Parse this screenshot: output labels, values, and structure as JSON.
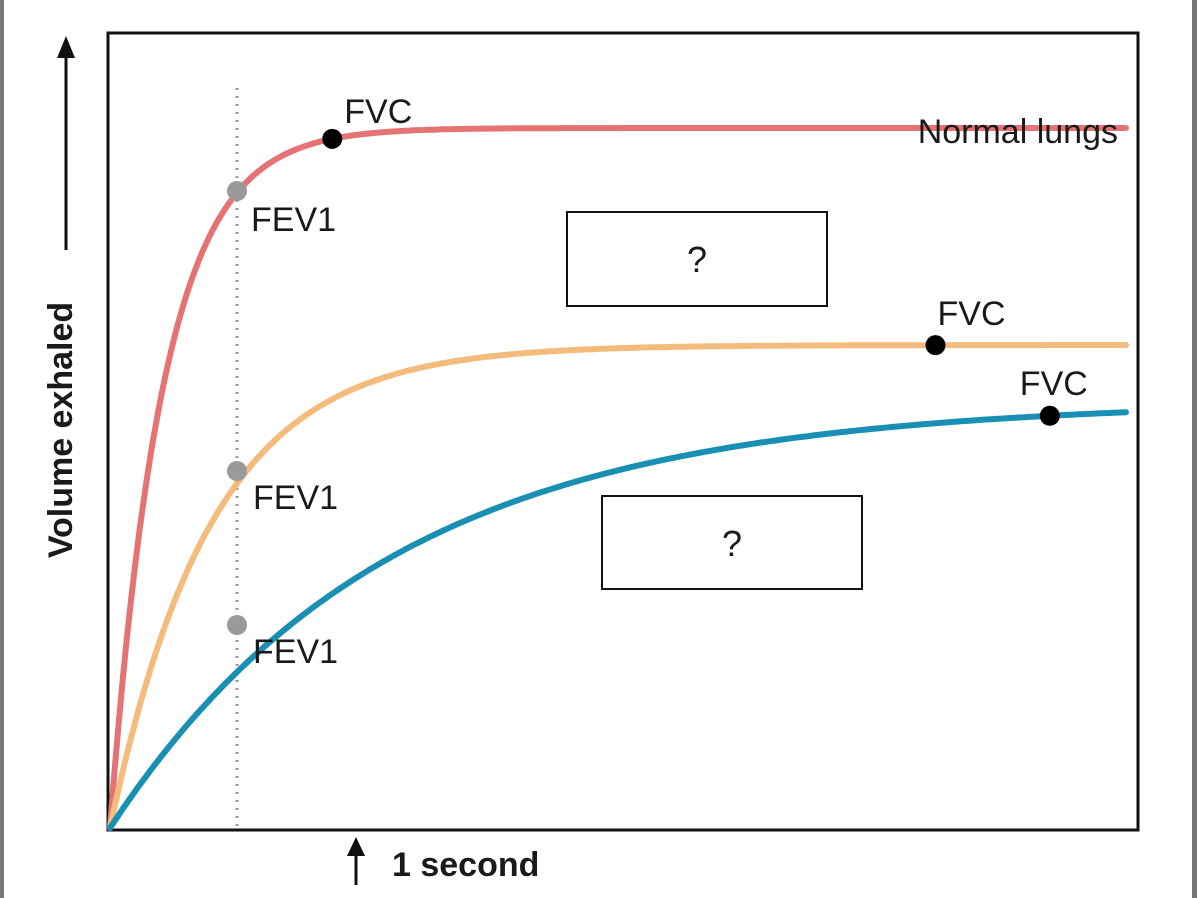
{
  "chart_data": {
    "type": "line",
    "title": "",
    "xlabel": "",
    "ylabel": "Volume exhaled",
    "x_marker_label": "1 second",
    "xlim": [
      0,
      8
    ],
    "ylim": [
      0,
      10
    ],
    "grid": false,
    "fev1_time": 1,
    "colors": {
      "frame": "#111111",
      "outer_border": "#777777",
      "dotted_line": "#9a9a9a",
      "fev1_point": "#9a9a9a",
      "fvc_point": "#000000"
    },
    "series": [
      {
        "name": "Normal lungs",
        "color": "#e57373",
        "fvc": 10.0,
        "tau": 0.42,
        "fev1": 9.1,
        "fvc_time": 1.75,
        "fev1_label": "FEV1",
        "fvc_label": "FVC",
        "series_label": "Normal lungs"
      },
      {
        "name": "?",
        "color": "#f3bc7c",
        "fvc": 6.9,
        "tau": 0.8,
        "fev1": 5.1,
        "fvc_time": 6.5,
        "fev1_label": "FEV1",
        "fvc_label": "FVC",
        "series_label": "?"
      },
      {
        "name": "?",
        "color": "#1a8fb4",
        "fvc": 6.1,
        "tau": 2.2,
        "fev1": 2.9,
        "fvc_time": 7.4,
        "fev1_label": "FEV1",
        "fvc_label": "FVC",
        "series_label": "?"
      }
    ]
  }
}
